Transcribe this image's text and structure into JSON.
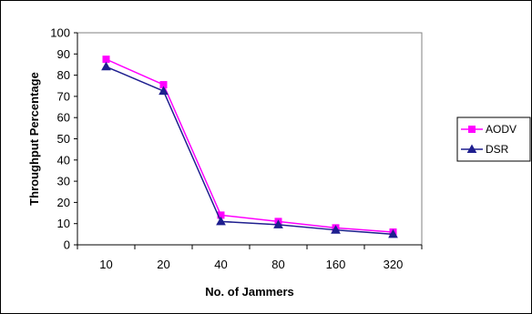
{
  "chart_data": {
    "type": "line",
    "title": "",
    "xlabel": "No. of Jammers",
    "ylabel": "Throughput Percentage",
    "categories": [
      "10",
      "20",
      "40",
      "80",
      "160",
      "320"
    ],
    "ylim": [
      0,
      100
    ],
    "yticks": [
      0,
      10,
      20,
      30,
      40,
      50,
      60,
      70,
      80,
      90,
      100
    ],
    "grid": false,
    "legend": "right",
    "series": [
      {
        "name": "AODV",
        "values": [
          87.5,
          75.5,
          14,
          11,
          8,
          6
        ],
        "color": "#ff00ff",
        "marker": "square"
      },
      {
        "name": "DSR",
        "values": [
          84,
          72.5,
          11,
          9.5,
          7,
          5
        ],
        "color": "#1f1f8f",
        "marker": "triangle"
      }
    ]
  }
}
